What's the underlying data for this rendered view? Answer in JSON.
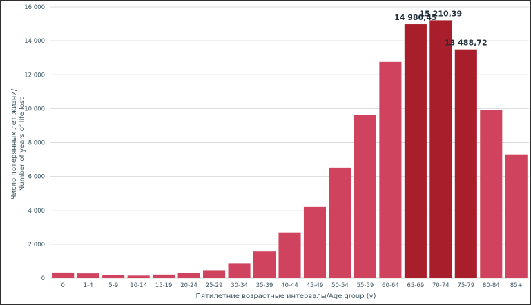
{
  "chart_data": {
    "type": "bar",
    "xlabel": "Пятилетние возрастные интервалы/Age group (y)",
    "ylabel_line1": "Число потерянных лет жизни/",
    "ylabel_line2": "Number of years of life lost",
    "ylim": [
      0,
      16000
    ],
    "yticks": [
      0,
      2000,
      4000,
      6000,
      8000,
      10000,
      12000,
      14000,
      16000
    ],
    "ytick_labels": [
      "0",
      "2 000",
      "4 000",
      "6 000",
      "8 000",
      "10 000",
      "12 000",
      "14 000",
      "16 000"
    ],
    "grid": true,
    "categories": [
      "0",
      "1-4",
      "5-9",
      "10-14",
      "15-19",
      "20-24",
      "25-29",
      "30-34",
      "35-39",
      "40-44",
      "45-49",
      "50-54",
      "55-59",
      "60-64",
      "65-69",
      "70-74",
      "75-79",
      "80-84",
      "85+"
    ],
    "values": [
      330,
      280,
      190,
      150,
      210,
      300,
      430,
      880,
      1580,
      2700,
      4200,
      6520,
      9620,
      12750,
      14980.45,
      15210.39,
      13488.72,
      9900,
      7300
    ],
    "highlight": [
      false,
      false,
      false,
      false,
      false,
      false,
      false,
      false,
      false,
      false,
      false,
      false,
      false,
      false,
      true,
      true,
      true,
      false,
      false
    ],
    "data_labels": [
      "",
      "",
      "",
      "",
      "",
      "",
      "",
      "",
      "",
      "",
      "",
      "",
      "",
      "",
      "14 980,45",
      "15 210,39",
      "13 488,72",
      "",
      ""
    ],
    "colors": {
      "bar": "#d0435f",
      "highlight": "#a81f2b",
      "grid": "#d9d9d9",
      "text": "#3d5560"
    }
  }
}
